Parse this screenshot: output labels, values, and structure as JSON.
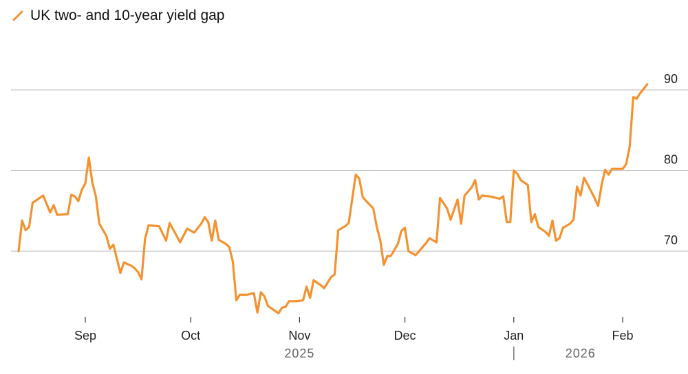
{
  "chart_data": {
    "type": "line",
    "title": "",
    "xlabel": "",
    "ylabel": "",
    "ylim": [
      62,
      93
    ],
    "xlim": [
      "2025-08-13",
      "2026-02-10"
    ],
    "grid": "horizontal",
    "y_axis_side": "right",
    "yticks": [
      70,
      80,
      90
    ],
    "legend": {
      "position": "top-left"
    },
    "x_ticks": [
      {
        "date": "2025-09-01",
        "label": "Sep"
      },
      {
        "date": "2025-10-01",
        "label": "Oct"
      },
      {
        "date": "2025-11-01",
        "label": "Nov"
      },
      {
        "date": "2025-12-01",
        "label": "Dec"
      },
      {
        "date": "2026-01-01",
        "label": "Jan"
      },
      {
        "date": "2026-02-01",
        "label": "Feb"
      }
    ],
    "year_labels": [
      {
        "label": "2025",
        "at": "2025-11-01"
      },
      {
        "label": "2026",
        "at": "2026-01-20"
      }
    ],
    "year_divider": "2026-01-01",
    "series": [
      {
        "name": "UK two- and 10-year yield gap",
        "color": "#f5922f",
        "points": [
          [
            "2025-08-13",
            70.0
          ],
          [
            "2025-08-14",
            73.8
          ],
          [
            "2025-08-15",
            72.6
          ],
          [
            "2025-08-16",
            73.0
          ],
          [
            "2025-08-17",
            76.0
          ],
          [
            "2025-08-19",
            76.6
          ],
          [
            "2025-08-20",
            76.9
          ],
          [
            "2025-08-22",
            74.8
          ],
          [
            "2025-08-23",
            75.7
          ],
          [
            "2025-08-24",
            74.5
          ],
          [
            "2025-08-27",
            74.6
          ],
          [
            "2025-08-28",
            77.0
          ],
          [
            "2025-08-29",
            76.8
          ],
          [
            "2025-08-30",
            76.2
          ],
          [
            "2025-08-31",
            77.6
          ],
          [
            "2025-09-01",
            78.4
          ],
          [
            "2025-09-02",
            81.6
          ],
          [
            "2025-09-03",
            78.5
          ],
          [
            "2025-09-04",
            76.8
          ],
          [
            "2025-09-05",
            73.4
          ],
          [
            "2025-09-07",
            71.9
          ],
          [
            "2025-09-08",
            70.3
          ],
          [
            "2025-09-09",
            70.8
          ],
          [
            "2025-09-11",
            67.3
          ],
          [
            "2025-09-12",
            68.6
          ],
          [
            "2025-09-14",
            68.2
          ],
          [
            "2025-09-15",
            67.9
          ],
          [
            "2025-09-16",
            67.4
          ],
          [
            "2025-09-17",
            66.5
          ],
          [
            "2025-09-18",
            71.5
          ],
          [
            "2025-09-19",
            73.2
          ],
          [
            "2025-09-22",
            73.1
          ],
          [
            "2025-09-24",
            71.3
          ],
          [
            "2025-09-25",
            73.5
          ],
          [
            "2025-09-28",
            71.1
          ],
          [
            "2025-09-30",
            72.8
          ],
          [
            "2025-10-02",
            72.3
          ],
          [
            "2025-10-04",
            73.4
          ],
          [
            "2025-10-05",
            74.2
          ],
          [
            "2025-10-06",
            73.6
          ],
          [
            "2025-10-07",
            71.3
          ],
          [
            "2025-10-08",
            73.8
          ],
          [
            "2025-10-09",
            71.4
          ],
          [
            "2025-10-11",
            70.9
          ],
          [
            "2025-10-12",
            70.5
          ],
          [
            "2025-10-13",
            68.7
          ],
          [
            "2025-10-14",
            63.9
          ],
          [
            "2025-10-15",
            64.6
          ],
          [
            "2025-10-17",
            64.6
          ],
          [
            "2025-10-19",
            64.8
          ],
          [
            "2025-10-20",
            62.4
          ],
          [
            "2025-10-21",
            64.9
          ],
          [
            "2025-10-22",
            64.4
          ],
          [
            "2025-10-23",
            63.2
          ],
          [
            "2025-10-24",
            62.9
          ],
          [
            "2025-10-26",
            62.3
          ],
          [
            "2025-10-27",
            63.0
          ],
          [
            "2025-10-28",
            63.1
          ],
          [
            "2025-10-29",
            63.8
          ],
          [
            "2025-10-31",
            63.8
          ],
          [
            "2025-11-02",
            63.9
          ],
          [
            "2025-11-03",
            65.6
          ],
          [
            "2025-11-04",
            64.2
          ],
          [
            "2025-11-05",
            66.4
          ],
          [
            "2025-11-07",
            65.8
          ],
          [
            "2025-11-08",
            65.4
          ],
          [
            "2025-11-10",
            66.8
          ],
          [
            "2025-11-11",
            67.1
          ],
          [
            "2025-11-12",
            72.6
          ],
          [
            "2025-11-14",
            73.1
          ],
          [
            "2025-11-15",
            73.5
          ],
          [
            "2025-11-17",
            79.5
          ],
          [
            "2025-11-18",
            79.0
          ],
          [
            "2025-11-19",
            76.7
          ],
          [
            "2025-11-20",
            76.2
          ],
          [
            "2025-11-22",
            75.3
          ],
          [
            "2025-11-23",
            73.0
          ],
          [
            "2025-11-24",
            71.3
          ],
          [
            "2025-11-25",
            68.3
          ],
          [
            "2025-11-26",
            69.4
          ],
          [
            "2025-11-27",
            69.4
          ],
          [
            "2025-11-29",
            70.9
          ],
          [
            "2025-11-30",
            72.5
          ],
          [
            "2025-12-01",
            72.9
          ],
          [
            "2025-12-02",
            70.0
          ],
          [
            "2025-12-04",
            69.5
          ],
          [
            "2025-12-07",
            71.0
          ],
          [
            "2025-12-08",
            71.6
          ],
          [
            "2025-12-10",
            71.1
          ],
          [
            "2025-12-11",
            76.6
          ],
          [
            "2025-12-13",
            75.3
          ],
          [
            "2025-12-14",
            73.9
          ],
          [
            "2025-12-16",
            76.4
          ],
          [
            "2025-12-17",
            73.4
          ],
          [
            "2025-12-18",
            76.9
          ],
          [
            "2025-12-20",
            77.9
          ],
          [
            "2025-12-21",
            78.8
          ],
          [
            "2025-12-22",
            76.4
          ],
          [
            "2025-12-23",
            76.9
          ],
          [
            "2025-12-25",
            76.8
          ],
          [
            "2025-12-28",
            76.5
          ],
          [
            "2025-12-29",
            76.8
          ],
          [
            "2025-12-30",
            73.6
          ],
          [
            "2025-12-31",
            73.6
          ],
          [
            "2026-01-01",
            80.0
          ],
          [
            "2026-01-02",
            79.6
          ],
          [
            "2026-01-03",
            78.8
          ],
          [
            "2026-01-05",
            78.2
          ],
          [
            "2026-01-06",
            73.6
          ],
          [
            "2026-01-07",
            74.6
          ],
          [
            "2026-01-08",
            73.0
          ],
          [
            "2026-01-10",
            72.4
          ],
          [
            "2026-01-11",
            71.9
          ],
          [
            "2026-01-12",
            73.8
          ],
          [
            "2026-01-13",
            71.3
          ],
          [
            "2026-01-14",
            71.6
          ],
          [
            "2026-01-15",
            72.9
          ],
          [
            "2026-01-17",
            73.4
          ],
          [
            "2026-01-18",
            73.9
          ],
          [
            "2026-01-19",
            78.0
          ],
          [
            "2026-01-20",
            76.9
          ],
          [
            "2026-01-21",
            79.1
          ],
          [
            "2026-01-22",
            78.3
          ],
          [
            "2026-01-24",
            76.6
          ],
          [
            "2026-01-25",
            75.6
          ],
          [
            "2026-01-26",
            78.2
          ],
          [
            "2026-01-27",
            80.1
          ],
          [
            "2026-01-28",
            79.5
          ],
          [
            "2026-01-29",
            80.2
          ],
          [
            "2026-01-31",
            80.2
          ],
          [
            "2026-02-01",
            80.2
          ],
          [
            "2026-02-02",
            80.8
          ],
          [
            "2026-02-03",
            83.0
          ],
          [
            "2026-02-04",
            89.1
          ],
          [
            "2026-02-05",
            88.9
          ],
          [
            "2026-02-06",
            89.6
          ],
          [
            "2026-02-08",
            90.7
          ]
        ]
      }
    ]
  }
}
